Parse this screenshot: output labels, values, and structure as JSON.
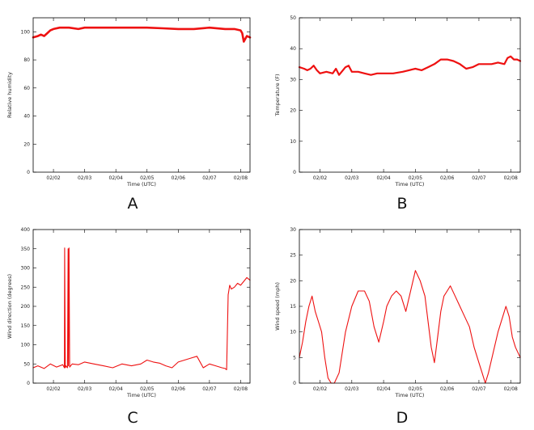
{
  "chart_data": [
    {
      "panel": "A",
      "type": "line",
      "xlabel": "Time (UTC)",
      "ylabel": "Relative humidity",
      "xticks": [
        "02/02",
        "02/03",
        "02/04",
        "02/05",
        "02/06",
        "02/07",
        "02/08"
      ],
      "xlim": [
        1.35,
        8.3
      ],
      "ylim": [
        0,
        110
      ],
      "yticks": [
        0,
        20,
        40,
        60,
        80,
        100
      ],
      "color": "#ee1111",
      "x": [
        1.35,
        1.5,
        1.6,
        1.7,
        1.8,
        1.9,
        2.0,
        2.2,
        2.5,
        2.8,
        3.0,
        3.5,
        4.0,
        4.5,
        5.0,
        5.5,
        6.0,
        6.5,
        7.0,
        7.5,
        7.8,
        8.0,
        8.05,
        8.1,
        8.15,
        8.2,
        8.3
      ],
      "y": [
        96,
        97,
        98,
        97,
        99,
        101,
        102,
        103,
        103,
        102,
        103,
        103,
        103,
        103,
        103,
        102.5,
        102,
        102,
        103,
        102,
        102,
        101,
        99,
        93,
        95,
        97,
        96
      ]
    },
    {
      "panel": "B",
      "type": "line",
      "xlabel": "Time (UTC)",
      "ylabel": "Temperature (F)",
      "xticks": [
        "02/02",
        "02/03",
        "02/04",
        "02/05",
        "02/06",
        "02/07",
        "02/08"
      ],
      "xlim": [
        1.35,
        8.3
      ],
      "ylim": [
        0,
        50
      ],
      "yticks": [
        0,
        10,
        20,
        30,
        40,
        50
      ],
      "color": "#ee1111",
      "x": [
        1.35,
        1.5,
        1.6,
        1.7,
        1.8,
        1.9,
        2.0,
        2.2,
        2.4,
        2.5,
        2.6,
        2.8,
        2.9,
        3.0,
        3.2,
        3.4,
        3.6,
        3.8,
        4.0,
        4.3,
        4.6,
        4.8,
        5.0,
        5.2,
        5.4,
        5.6,
        5.8,
        6.0,
        6.2,
        6.4,
        6.6,
        6.8,
        7.0,
        7.2,
        7.4,
        7.6,
        7.8,
        7.9,
        8.0,
        8.1,
        8.2,
        8.3
      ],
      "y": [
        34,
        33.5,
        33,
        33.5,
        34.5,
        33,
        32,
        32.5,
        32,
        33.5,
        31.5,
        34,
        34.5,
        32.5,
        32.5,
        32,
        31.5,
        32,
        32,
        32,
        32.5,
        33,
        33.5,
        33,
        34,
        35,
        36.5,
        36.5,
        36,
        35,
        33.5,
        34,
        35,
        35,
        35,
        35.5,
        35,
        37,
        37.5,
        36.5,
        36.5,
        36
      ]
    },
    {
      "panel": "C",
      "type": "line",
      "xlabel": "Time (UTC)",
      "ylabel": "Wind direction (degrees)",
      "xticks": [
        "02/02",
        "02/03",
        "02/04",
        "02/05",
        "02/06",
        "02/07",
        "02/08"
      ],
      "xlim": [
        1.35,
        8.3
      ],
      "ylim": [
        0,
        400
      ],
      "yticks": [
        0,
        50,
        100,
        150,
        200,
        250,
        300,
        350,
        400
      ],
      "color": "#ee1111",
      "x": [
        1.35,
        1.5,
        1.7,
        1.9,
        2.1,
        2.3,
        2.35,
        2.36,
        2.38,
        2.4,
        2.45,
        2.47,
        2.48,
        2.5,
        2.52,
        2.6,
        2.8,
        3.0,
        3.3,
        3.6,
        3.9,
        4.2,
        4.5,
        4.8,
        5.0,
        5.2,
        5.4,
        5.6,
        5.8,
        6.0,
        6.2,
        6.4,
        6.6,
        6.8,
        7.0,
        7.2,
        7.4,
        7.5,
        7.55,
        7.6,
        7.65,
        7.7,
        7.8,
        7.9,
        8.0,
        8.1,
        8.2,
        8.3
      ],
      "y": [
        40,
        45,
        38,
        50,
        42,
        48,
        40,
        352,
        40,
        45,
        40,
        350,
        45,
        352,
        42,
        50,
        48,
        55,
        50,
        45,
        40,
        50,
        45,
        50,
        60,
        55,
        52,
        45,
        40,
        55,
        60,
        65,
        70,
        40,
        50,
        45,
        40,
        38,
        35,
        230,
        255,
        245,
        250,
        260,
        255,
        265,
        275,
        268
      ]
    },
    {
      "panel": "D",
      "type": "line",
      "xlabel": "Time (UTC)",
      "ylabel": "Wind speed (mph)",
      "xticks": [
        "02/02",
        "02/03",
        "02/04",
        "02/05",
        "02/06",
        "02/07",
        "02/08"
      ],
      "xlim": [
        1.35,
        8.3
      ],
      "ylim": [
        0,
        30
      ],
      "yticks": [
        0,
        5,
        10,
        15,
        20,
        25,
        30
      ],
      "color": "#ee1111",
      "x": [
        1.35,
        1.45,
        1.55,
        1.65,
        1.75,
        1.85,
        1.95,
        2.05,
        2.15,
        2.25,
        2.35,
        2.45,
        2.6,
        2.8,
        3.0,
        3.2,
        3.4,
        3.55,
        3.7,
        3.85,
        4.0,
        4.1,
        4.25,
        4.4,
        4.55,
        4.7,
        4.85,
        5.0,
        5.15,
        5.3,
        5.4,
        5.5,
        5.6,
        5.7,
        5.8,
        5.9,
        6.0,
        6.1,
        6.25,
        6.4,
        6.55,
        6.7,
        6.85,
        7.0,
        7.1,
        7.2,
        7.3,
        7.45,
        7.6,
        7.75,
        7.85,
        7.95,
        8.05,
        8.15,
        8.3
      ],
      "y": [
        5,
        8,
        12,
        15,
        17,
        14,
        12,
        10,
        5,
        1,
        0,
        0,
        2,
        10,
        15,
        18,
        18,
        16,
        11,
        8,
        12,
        15,
        17,
        18,
        17,
        14,
        18,
        22,
        20,
        17,
        12,
        7,
        4,
        9,
        14,
        17,
        18,
        19,
        17,
        15,
        13,
        11,
        7,
        4,
        2,
        0,
        2,
        6,
        10,
        13,
        15,
        13,
        9,
        7,
        5
      ]
    }
  ]
}
